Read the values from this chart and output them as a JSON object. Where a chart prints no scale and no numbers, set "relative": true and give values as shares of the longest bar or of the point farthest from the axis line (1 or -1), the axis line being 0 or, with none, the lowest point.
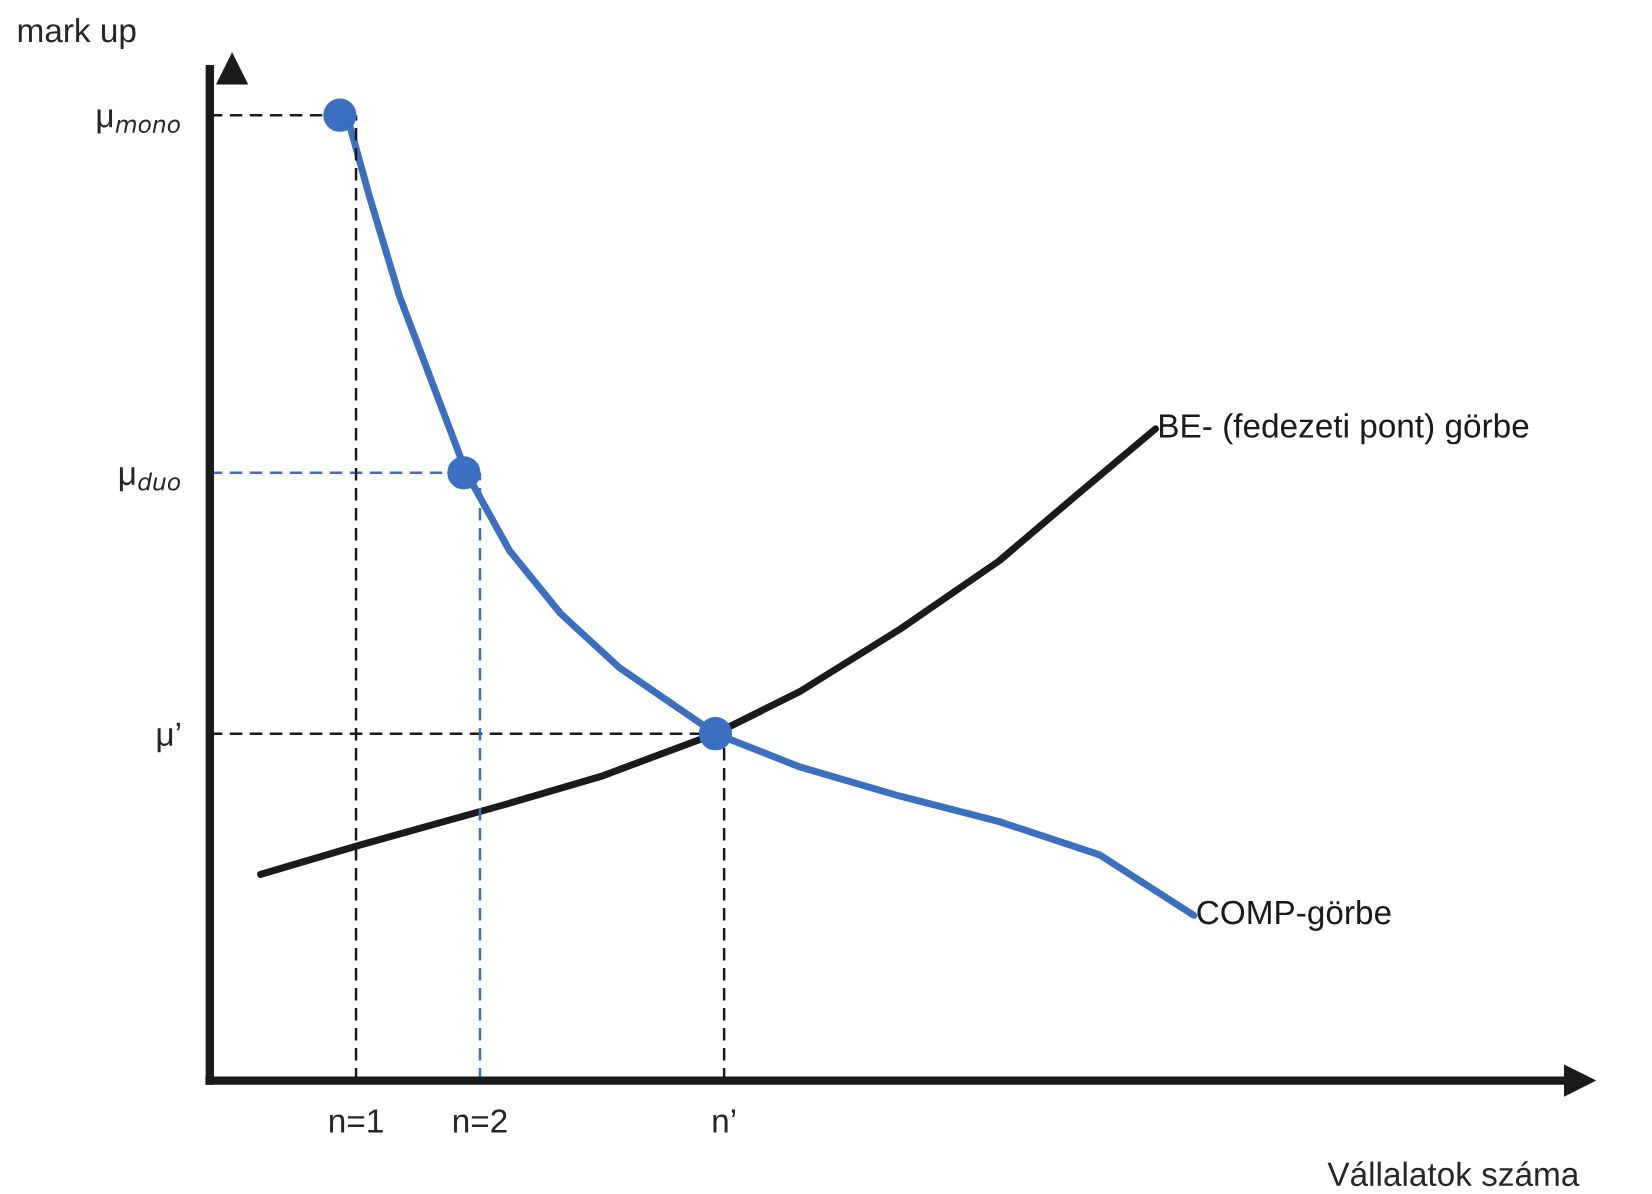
{
  "chart_data": {
    "type": "line",
    "relative": true,
    "xlabel": "Vállalatok száma",
    "ylabel": "mark up",
    "legend": false,
    "grid": false,
    "xlim": [
      -0.18,
      10.87
    ],
    "xticks": [
      {
        "value": 1,
        "label": "n=1"
      },
      {
        "value": 2,
        "label": "n=2"
      },
      {
        "value": 3.97,
        "label": "n’"
      }
    ],
    "series": [
      {
        "name": "COMP-görbe",
        "color": "#3b6fbf",
        "x": [
          0.9,
          1.11,
          1.35,
          1.6,
          1.89,
          2.24,
          2.65,
          3.13,
          3.9,
          4.58,
          5.39,
          6.19,
          7.0,
          7.76
        ],
        "values": [
          1.0,
          0.904,
          0.803,
          0.719,
          0.622,
          0.542,
          0.478,
          0.422,
          0.355,
          0.321,
          0.291,
          0.265,
          0.231,
          0.169
        ]
      },
      {
        "name": "BE- (fedezeti pont) görbe",
        "color": "#1a1a1a",
        "x": [
          0.23,
          1.03,
          2.16,
          2.97,
          3.9,
          4.58,
          5.39,
          6.19,
          6.84,
          7.45
        ],
        "values": [
          0.211,
          0.241,
          0.281,
          0.311,
          0.355,
          0.398,
          0.462,
          0.532,
          0.602,
          0.667
        ]
      },
      {
        "type": "scatter",
        "marker": "circle",
        "color": "#3b6fbf",
        "x": [
          0.87,
          1.87,
          3.9
        ],
        "values": [
          0.988,
          0.622,
          0.355
        ]
      }
    ],
    "ref_lines": [
      {
        "axis": "y",
        "value": 0.988,
        "label": "μ$_{mono}$",
        "color": "#1a1a1a",
        "line_style": "dashed"
      },
      {
        "axis": "y",
        "value": 0.622,
        "label": "μ$_{duo}$",
        "color": "#3b6fbf",
        "line_style": "dashed"
      },
      {
        "axis": "y",
        "value": 0.355,
        "label": "μ’",
        "color": "#1a1a1a",
        "line_style": "dashed"
      },
      {
        "axis": "x",
        "value": 1,
        "color": "#1a1a1a",
        "line_style": "dashed"
      },
      {
        "axis": "x",
        "value": 2,
        "color": "#3b6fbf",
        "line_style": "dashed"
      },
      {
        "axis": "x",
        "value": 3.97,
        "color": "#1a1a1a",
        "line_style": "dashed"
      }
    ]
  }
}
